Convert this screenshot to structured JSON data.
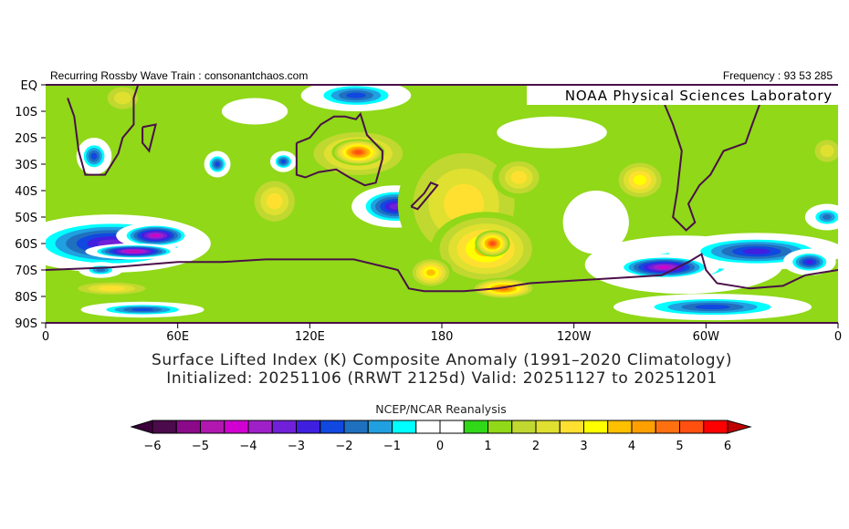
{
  "header": {
    "left_text": "Recurring Rossby Wave Train : consonantchaos.com",
    "right_text": "Frequency : 93 53 285",
    "lab_label": "NOAA Physical Sciences Laboratory"
  },
  "title": {
    "line1": "Surface Lifted Index (K) Composite Anomaly (1991–2020 Climatology)",
    "line2": "Initialized: 20251106 (RRWT 2125d) Valid: 20251127 to 20251201"
  },
  "chart_data": {
    "type": "heatmap",
    "projection": "cylindrical equidistant",
    "lon_range": [
      0,
      360
    ],
    "lat_range": [
      0,
      -90
    ],
    "x_tick_labels": [
      "0",
      "60E",
      "120E",
      "180",
      "120W",
      "60W",
      "0"
    ],
    "y_tick_labels": [
      "EQ",
      "10S",
      "20S",
      "30S",
      "40S",
      "50S",
      "60S",
      "70S",
      "80S",
      "90S"
    ],
    "background_value": 1,
    "anomaly_features": [
      {
        "lon": 30,
        "lat": -60,
        "rx": 45,
        "ry": 11,
        "value": -3.5
      },
      {
        "lon": 50,
        "lat": -57,
        "rx": 18,
        "ry": 5,
        "value": -4.5
      },
      {
        "lon": 40,
        "lat": -63,
        "rx": 22,
        "ry": 3,
        "value": -5
      },
      {
        "lon": 22,
        "lat": -27,
        "rx": 8,
        "ry": 7,
        "value": -2.5
      },
      {
        "lon": 78,
        "lat": -30,
        "rx": 6,
        "ry": 5,
        "value": -2.5
      },
      {
        "lon": 108,
        "lat": -29,
        "rx": 6,
        "ry": 4,
        "value": -2.5
      },
      {
        "lon": 159,
        "lat": -46,
        "rx": 20,
        "ry": 8,
        "value": -3.5
      },
      {
        "lon": 141,
        "lat": -4,
        "rx": 25,
        "ry": 6,
        "value": -2.5
      },
      {
        "lon": 44,
        "lat": -85,
        "rx": 28,
        "ry": 3,
        "value": -2.5
      },
      {
        "lon": 25,
        "lat": -70,
        "rx": 10,
        "ry": 3,
        "value": -2
      },
      {
        "lon": 95,
        "lat": -10,
        "rx": 15,
        "ry": 5,
        "value": 0
      },
      {
        "lon": 230,
        "lat": -18,
        "rx": 25,
        "ry": 6,
        "value": 0
      },
      {
        "lon": 250,
        "lat": -52,
        "rx": 15,
        "ry": 12,
        "value": 0
      },
      {
        "lon": 290,
        "lat": -68,
        "rx": 45,
        "ry": 11,
        "value": -1.5
      },
      {
        "lon": 323,
        "lat": -63,
        "rx": 40,
        "ry": 7,
        "value": -3
      },
      {
        "lon": 347,
        "lat": -67,
        "rx": 12,
        "ry": 5,
        "value": -3
      },
      {
        "lon": 281,
        "lat": -69,
        "rx": 25,
        "ry": 5,
        "value": -4.5
      },
      {
        "lon": 303,
        "lat": -84,
        "rx": 45,
        "ry": 5,
        "value": -2.5
      },
      {
        "lon": 355,
        "lat": -50,
        "rx": 10,
        "ry": 5,
        "value": -2
      },
      {
        "lon": 180,
        "lat": -44,
        "rx": 4,
        "ry": 5,
        "value": -1.5
      },
      {
        "lon": 142,
        "lat": -26,
        "rx": 25,
        "ry": 10,
        "value": 3.5
      },
      {
        "lon": 142,
        "lat": -25.5,
        "rx": 12,
        "ry": 5,
        "value": 5.5
      },
      {
        "lon": 190,
        "lat": -45,
        "rx": 30,
        "ry": 25,
        "value": 3
      },
      {
        "lon": 200,
        "lat": -62,
        "rx": 25,
        "ry": 14,
        "value": 4
      },
      {
        "lon": 203,
        "lat": -60,
        "rx": 8,
        "ry": 5,
        "value": 5.5
      },
      {
        "lon": 208,
        "lat": -77,
        "rx": 15,
        "ry": 4,
        "value": 5
      },
      {
        "lon": 175,
        "lat": -71,
        "rx": 10,
        "ry": 6,
        "value": 4
      },
      {
        "lon": 215,
        "lat": -35,
        "rx": 12,
        "ry": 8,
        "value": 3
      },
      {
        "lon": 270,
        "lat": -36,
        "rx": 12,
        "ry": 8,
        "value": 3.5
      },
      {
        "lon": 104,
        "lat": -44,
        "rx": 12,
        "ry": 10,
        "value": 3
      },
      {
        "lon": 35,
        "lat": -5,
        "rx": 10,
        "ry": 6,
        "value": 2.5
      },
      {
        "lon": 30,
        "lat": -77,
        "rx": 20,
        "ry": 3,
        "value": 3
      },
      {
        "lon": 355,
        "lat": -25,
        "rx": 8,
        "ry": 6,
        "value": 2.5
      }
    ],
    "colorbar": {
      "title": "NCEP/NCAR Reanalysis",
      "min": -6,
      "max": 6,
      "step": 0.5,
      "tick_labels": [
        "-6",
        "-5",
        "-4",
        "-3",
        "-2",
        "-1",
        "0",
        "1",
        "2",
        "3",
        "4",
        "5",
        "6"
      ],
      "colors": [
        "#4b0a4b",
        "#8a0a8a",
        "#b018b0",
        "#d000d0",
        "#a020c8",
        "#7020d8",
        "#4020e0",
        "#1048e0",
        "#2070c0",
        "#20a0e0",
        "#00ffff",
        "#ffffff",
        "#ffffff",
        "#30d818",
        "#90d818",
        "#c0d830",
        "#e0e030",
        "#ffe030",
        "#ffff00",
        "#ffc000",
        "#ffa000",
        "#ff7010",
        "#ff5010",
        "#ff0000"
      ],
      "under_color": "#3c003c",
      "over_color": "#c00000"
    },
    "coastline_color": "#4a1048"
  }
}
